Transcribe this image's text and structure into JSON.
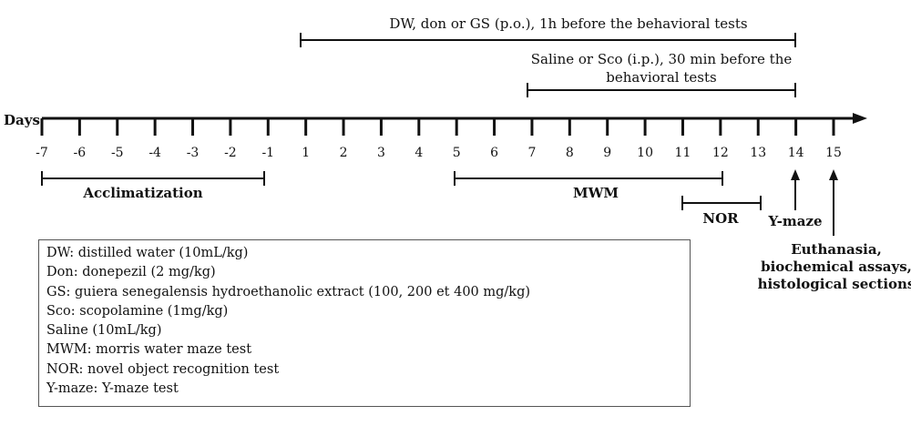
{
  "timeline": {
    "axis_label": "Days",
    "days": [
      "-7",
      "-6",
      "-5",
      "-4",
      "-3",
      "-2",
      "-1",
      "1",
      "2",
      "3",
      "4",
      "5",
      "6",
      "7",
      "8",
      "9",
      "10",
      "11",
      "12",
      "13",
      "14",
      "15"
    ]
  },
  "treatments": [
    {
      "label": "DW, don or GS (p.o.), 1h before the behavioral tests",
      "from_day": "1",
      "to_day": "14"
    },
    {
      "label_lines": [
        "Saline or Sco (i.p.), 30 min before the",
        "behavioral tests"
      ],
      "from_day": "7",
      "to_day": "14"
    }
  ],
  "periods": [
    {
      "label": "Acclimatization",
      "from_day": "-7",
      "to_day": "-1"
    },
    {
      "label": "MWM",
      "from_day": "5",
      "to_day": "12"
    },
    {
      "label": "NOR",
      "from_day": "11",
      "to_day": "13"
    }
  ],
  "markers": [
    {
      "day": "14",
      "label_lines": [
        "Y-maze"
      ]
    },
    {
      "day": "15",
      "label_lines": [
        "Euthanasia,",
        "biochemical assays,",
        "histological sections"
      ]
    }
  ],
  "legend": [
    "DW: distilled water (10mL/kg)",
    "Don: donepezil (2 mg/kg)",
    "GS: guiera senegalensis hydroethanolic extract (100, 200 et 400 mg/kg)",
    "Sco: scopolamine (1mg/kg)",
    "Saline (10mL/kg)",
    "MWM: morris water maze test",
    "NOR: novel object recognition test",
    "Y-maze: Y-maze test"
  ]
}
